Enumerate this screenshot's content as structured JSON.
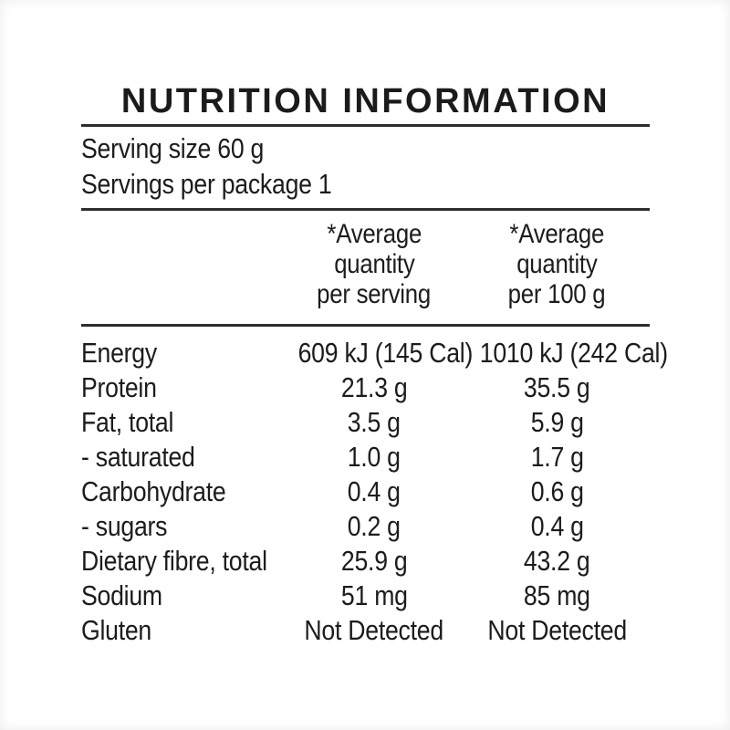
{
  "panel": {
    "title": "NUTRITION INFORMATION",
    "serving": {
      "size_line": "Serving size 60 g",
      "per_package_line": "Servings per package 1"
    },
    "columns": {
      "per_serving": {
        "lines": [
          "*Average",
          "quantity",
          "per serving"
        ]
      },
      "per_100g": {
        "lines": [
          "*Average",
          "quantity",
          "per 100 g"
        ]
      }
    },
    "rows": [
      {
        "label": "Energy",
        "per_serving": "609 kJ (145 Cal)",
        "per_100g": "1010 kJ (242 Cal)"
      },
      {
        "label": "Protein",
        "per_serving": "21.3 g",
        "per_100g": "35.5 g"
      },
      {
        "label": "Fat, total",
        "per_serving": "3.5 g",
        "per_100g": "5.9 g"
      },
      {
        "label": "- saturated",
        "per_serving": "1.0 g",
        "per_100g": "1.7 g"
      },
      {
        "label": "Carbohydrate",
        "per_serving": "0.4 g",
        "per_100g": "0.6 g"
      },
      {
        "label": "- sugars",
        "per_serving": "0.2 g",
        "per_100g": "0.4 g"
      },
      {
        "label": "Dietary fibre, total",
        "per_serving": "25.9 g",
        "per_100g": "43.2 g"
      },
      {
        "label": "Sodium",
        "per_serving": "51 mg",
        "per_100g": "85 mg"
      },
      {
        "label": "Gluten",
        "per_serving": "Not Detected",
        "per_100g": "Not Detected"
      }
    ],
    "colors": {
      "text": "#1c1c1c",
      "rule": "#2d2d2d",
      "background": "#ffffff"
    }
  }
}
